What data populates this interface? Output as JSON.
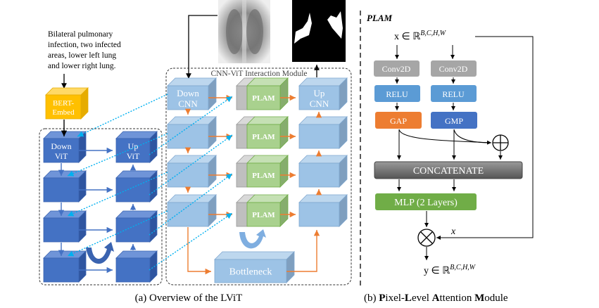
{
  "left": {
    "input_text_lines": [
      "Bilateral pulmonary",
      "infection, two infected",
      "areas, lower left lung",
      "and lower right lung."
    ],
    "bert": [
      "BERT-",
      "Embed"
    ],
    "down_vit": [
      "Down",
      "ViT"
    ],
    "up_vit": [
      "Up",
      "ViT"
    ],
    "down_cnn": [
      "Down",
      "CNN"
    ],
    "up_cnn": [
      "Up",
      "CNN"
    ],
    "plam": "PLAM",
    "bottleneck": "Bottleneck",
    "interaction_module": "CNN-ViT Interaction Module",
    "caption": "(a) Overview of the LViT"
  },
  "right": {
    "title": "PLAM",
    "input": "x ∈ ℝ",
    "input_sup": "B,C,H,W",
    "conv": "Conv2D",
    "relu": "RELU",
    "gap": "GAP",
    "gmp": "GMP",
    "concat": "CONCATENATE",
    "mlp": "MLP (2 Layers)",
    "x_label": "x",
    "output": "y ∈ ℝ",
    "output_sup": "B,C,H,W",
    "caption_parts": [
      "(b) ",
      "P",
      "ixel-",
      "L",
      "evel ",
      "A",
      "ttention ",
      "M",
      "odule"
    ]
  },
  "colors": {
    "vit": "#4472c4",
    "cnn": "#9dc3e6",
    "plam": "#a9d18e",
    "bert": "#ffc000",
    "orange_arrow": "#ed7d31",
    "dotted_link": "#00b0f0",
    "gap": "#ed7d31",
    "gmp": "#4472c4",
    "relu": "#5b9bd5",
    "conv": "#a6a6a6",
    "mlp": "#70ad47",
    "concat": "#7f7f7f"
  }
}
